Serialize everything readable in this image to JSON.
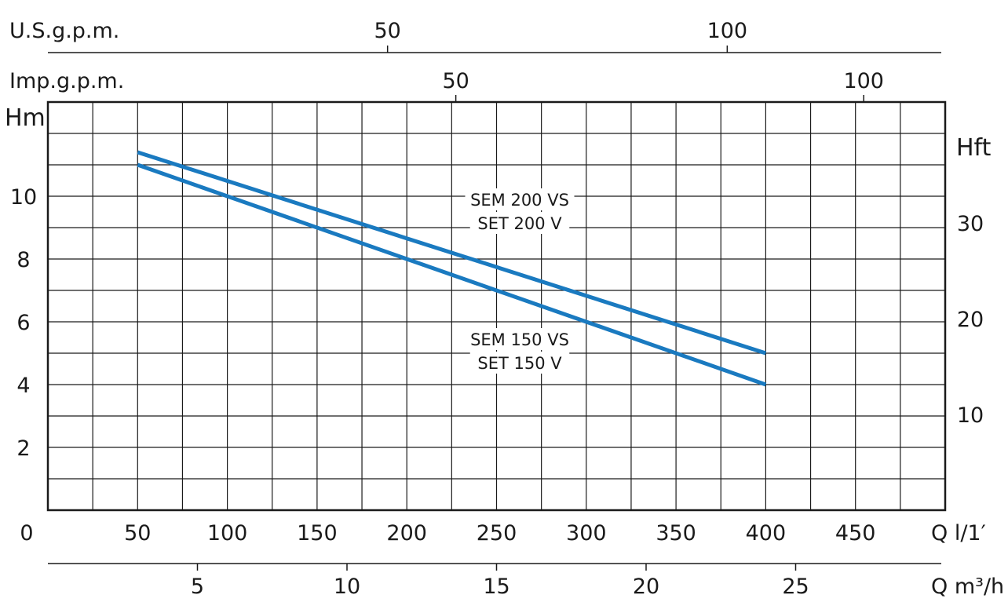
{
  "chart_data": {
    "type": "line",
    "x_axis": {
      "label": "Q l/1′",
      "min": 0,
      "max": 500,
      "ticks": [
        0,
        50,
        100,
        150,
        200,
        250,
        300,
        350,
        400,
        450
      ]
    },
    "y_axis_left": {
      "label": "Hm",
      "min": 0,
      "max": 13,
      "ticks": [
        2,
        4,
        6,
        8,
        10
      ]
    },
    "y_axis_right": {
      "label": "Hft",
      "ticks": [
        10,
        20,
        30
      ]
    },
    "top_axis_usgpm": {
      "label": "U.S.g.p.m.",
      "ticks": [
        50,
        100
      ]
    },
    "top_axis_impgpm": {
      "label": "Imp.g.p.m.",
      "ticks": [
        50,
        100
      ]
    },
    "bottom_axis_m3h": {
      "label": "Q m³/h",
      "ticks": [
        5,
        10,
        15,
        20,
        25
      ]
    },
    "grid": true,
    "series": [
      {
        "name": "SEM 200 VS / SET 200 V",
        "label_lines": [
          "SEM 200 VS",
          "SET 200 V"
        ],
        "color": "#1a7ac0",
        "x": [
          50,
          400
        ],
        "y": [
          11.4,
          5.0
        ]
      },
      {
        "name": "SEM 150 VS / SET 150 V",
        "label_lines": [
          "SEM 150 VS",
          "SET 150 V"
        ],
        "color": "#1a7ac0",
        "x": [
          50,
          400
        ],
        "y": [
          11.0,
          4.0
        ]
      }
    ]
  }
}
